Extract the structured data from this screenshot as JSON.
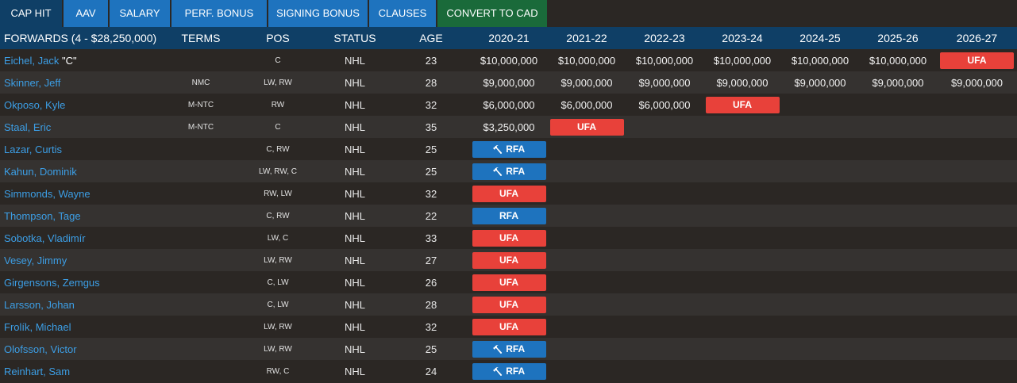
{
  "tabs": [
    {
      "label": "CAP HIT"
    },
    {
      "label": "AAV"
    },
    {
      "label": "SALARY"
    },
    {
      "label": "PERF. BONUS"
    },
    {
      "label": "SIGNING BONUS"
    },
    {
      "label": "CLAUSES"
    },
    {
      "label": "CONVERT TO CAD"
    }
  ],
  "header": {
    "group": "FORWARDS (4 - $28,250,000)",
    "terms": "TERMS",
    "pos": "POS",
    "status": "STATUS",
    "age": "AGE",
    "seasons": [
      "2020-21",
      "2021-22",
      "2022-23",
      "2023-24",
      "2024-25",
      "2025-26",
      "2026-27"
    ]
  },
  "colors": {
    "ufa": "#e8413a",
    "rfa": "#1e73be",
    "link": "#3c9ee5",
    "header_bg": "#0f3f66",
    "tab_bg": "#1e73be",
    "cad_tab_bg": "#1a6a3a"
  },
  "players": [
    {
      "name": "Eichel, Jack",
      "captain": "\"C\"",
      "terms": "",
      "pos": "C",
      "status": "NHL",
      "age": "23",
      "seasons": [
        {
          "t": "money",
          "v": "$10,000,000"
        },
        {
          "t": "money",
          "v": "$10,000,000"
        },
        {
          "t": "money",
          "v": "$10,000,000"
        },
        {
          "t": "money",
          "v": "$10,000,000"
        },
        {
          "t": "money",
          "v": "$10,000,000"
        },
        {
          "t": "money",
          "v": "$10,000,000"
        },
        {
          "t": "ufa",
          "v": "UFA"
        }
      ]
    },
    {
      "name": "Skinner, Jeff",
      "captain": "",
      "terms": "NMC",
      "pos": "LW, RW",
      "status": "NHL",
      "age": "28",
      "seasons": [
        {
          "t": "money",
          "v": "$9,000,000"
        },
        {
          "t": "money",
          "v": "$9,000,000"
        },
        {
          "t": "money",
          "v": "$9,000,000"
        },
        {
          "t": "money",
          "v": "$9,000,000"
        },
        {
          "t": "money",
          "v": "$9,000,000"
        },
        {
          "t": "money",
          "v": "$9,000,000"
        },
        {
          "t": "money",
          "v": "$9,000,000"
        }
      ]
    },
    {
      "name": "Okposo, Kyle",
      "captain": "",
      "terms": "M-NTC",
      "pos": "RW",
      "status": "NHL",
      "age": "32",
      "seasons": [
        {
          "t": "money",
          "v": "$6,000,000"
        },
        {
          "t": "money",
          "v": "$6,000,000"
        },
        {
          "t": "money",
          "v": "$6,000,000"
        },
        {
          "t": "ufa",
          "v": "UFA"
        },
        {
          "t": "empty",
          "v": ""
        },
        {
          "t": "empty",
          "v": ""
        },
        {
          "t": "empty",
          "v": ""
        }
      ]
    },
    {
      "name": "Staal, Eric",
      "captain": "",
      "terms": "M-NTC",
      "pos": "C",
      "status": "NHL",
      "age": "35",
      "seasons": [
        {
          "t": "money",
          "v": "$3,250,000"
        },
        {
          "t": "ufa",
          "v": "UFA"
        },
        {
          "t": "empty",
          "v": ""
        },
        {
          "t": "empty",
          "v": ""
        },
        {
          "t": "empty",
          "v": ""
        },
        {
          "t": "empty",
          "v": ""
        },
        {
          "t": "empty",
          "v": ""
        }
      ]
    },
    {
      "name": "Lazar, Curtis",
      "captain": "",
      "terms": "",
      "pos": "C, RW",
      "status": "NHL",
      "age": "25",
      "seasons": [
        {
          "t": "rfa",
          "v": "RFA",
          "gavel": true
        },
        {
          "t": "empty",
          "v": ""
        },
        {
          "t": "empty",
          "v": ""
        },
        {
          "t": "empty",
          "v": ""
        },
        {
          "t": "empty",
          "v": ""
        },
        {
          "t": "empty",
          "v": ""
        },
        {
          "t": "empty",
          "v": ""
        }
      ]
    },
    {
      "name": "Kahun, Dominik",
      "captain": "",
      "terms": "",
      "pos": "LW, RW, C",
      "status": "NHL",
      "age": "25",
      "seasons": [
        {
          "t": "rfa",
          "v": "RFA",
          "gavel": true
        },
        {
          "t": "empty",
          "v": ""
        },
        {
          "t": "empty",
          "v": ""
        },
        {
          "t": "empty",
          "v": ""
        },
        {
          "t": "empty",
          "v": ""
        },
        {
          "t": "empty",
          "v": ""
        },
        {
          "t": "empty",
          "v": ""
        }
      ]
    },
    {
      "name": "Simmonds, Wayne",
      "captain": "",
      "terms": "",
      "pos": "RW, LW",
      "status": "NHL",
      "age": "32",
      "seasons": [
        {
          "t": "ufa",
          "v": "UFA"
        },
        {
          "t": "empty",
          "v": ""
        },
        {
          "t": "empty",
          "v": ""
        },
        {
          "t": "empty",
          "v": ""
        },
        {
          "t": "empty",
          "v": ""
        },
        {
          "t": "empty",
          "v": ""
        },
        {
          "t": "empty",
          "v": ""
        }
      ]
    },
    {
      "name": "Thompson, Tage",
      "captain": "",
      "terms": "",
      "pos": "C, RW",
      "status": "NHL",
      "age": "22",
      "seasons": [
        {
          "t": "rfa",
          "v": "RFA",
          "gavel": false
        },
        {
          "t": "empty",
          "v": ""
        },
        {
          "t": "empty",
          "v": ""
        },
        {
          "t": "empty",
          "v": ""
        },
        {
          "t": "empty",
          "v": ""
        },
        {
          "t": "empty",
          "v": ""
        },
        {
          "t": "empty",
          "v": ""
        }
      ]
    },
    {
      "name": "Sobotka, Vladimír",
      "captain": "",
      "terms": "",
      "pos": "LW, C",
      "status": "NHL",
      "age": "33",
      "seasons": [
        {
          "t": "ufa",
          "v": "UFA"
        },
        {
          "t": "empty",
          "v": ""
        },
        {
          "t": "empty",
          "v": ""
        },
        {
          "t": "empty",
          "v": ""
        },
        {
          "t": "empty",
          "v": ""
        },
        {
          "t": "empty",
          "v": ""
        },
        {
          "t": "empty",
          "v": ""
        }
      ]
    },
    {
      "name": "Vesey, Jimmy",
      "captain": "",
      "terms": "",
      "pos": "LW, RW",
      "status": "NHL",
      "age": "27",
      "seasons": [
        {
          "t": "ufa",
          "v": "UFA"
        },
        {
          "t": "empty",
          "v": ""
        },
        {
          "t": "empty",
          "v": ""
        },
        {
          "t": "empty",
          "v": ""
        },
        {
          "t": "empty",
          "v": ""
        },
        {
          "t": "empty",
          "v": ""
        },
        {
          "t": "empty",
          "v": ""
        }
      ]
    },
    {
      "name": "Girgensons, Zemgus",
      "captain": "",
      "terms": "",
      "pos": "C, LW",
      "status": "NHL",
      "age": "26",
      "seasons": [
        {
          "t": "ufa",
          "v": "UFA"
        },
        {
          "t": "empty",
          "v": ""
        },
        {
          "t": "empty",
          "v": ""
        },
        {
          "t": "empty",
          "v": ""
        },
        {
          "t": "empty",
          "v": ""
        },
        {
          "t": "empty",
          "v": ""
        },
        {
          "t": "empty",
          "v": ""
        }
      ]
    },
    {
      "name": "Larsson, Johan",
      "captain": "",
      "terms": "",
      "pos": "C, LW",
      "status": "NHL",
      "age": "28",
      "seasons": [
        {
          "t": "ufa",
          "v": "UFA"
        },
        {
          "t": "empty",
          "v": ""
        },
        {
          "t": "empty",
          "v": ""
        },
        {
          "t": "empty",
          "v": ""
        },
        {
          "t": "empty",
          "v": ""
        },
        {
          "t": "empty",
          "v": ""
        },
        {
          "t": "empty",
          "v": ""
        }
      ]
    },
    {
      "name": "Frolík, Michael",
      "captain": "",
      "terms": "",
      "pos": "LW, RW",
      "status": "NHL",
      "age": "32",
      "seasons": [
        {
          "t": "ufa",
          "v": "UFA"
        },
        {
          "t": "empty",
          "v": ""
        },
        {
          "t": "empty",
          "v": ""
        },
        {
          "t": "empty",
          "v": ""
        },
        {
          "t": "empty",
          "v": ""
        },
        {
          "t": "empty",
          "v": ""
        },
        {
          "t": "empty",
          "v": ""
        }
      ]
    },
    {
      "name": "Olofsson, Victor",
      "captain": "",
      "terms": "",
      "pos": "LW, RW",
      "status": "NHL",
      "age": "25",
      "seasons": [
        {
          "t": "rfa",
          "v": "RFA",
          "gavel": true
        },
        {
          "t": "empty",
          "v": ""
        },
        {
          "t": "empty",
          "v": ""
        },
        {
          "t": "empty",
          "v": ""
        },
        {
          "t": "empty",
          "v": ""
        },
        {
          "t": "empty",
          "v": ""
        },
        {
          "t": "empty",
          "v": ""
        }
      ]
    },
    {
      "name": "Reinhart, Sam",
      "captain": "",
      "terms": "",
      "pos": "RW, C",
      "status": "NHL",
      "age": "24",
      "seasons": [
        {
          "t": "rfa",
          "v": "RFA",
          "gavel": true
        },
        {
          "t": "empty",
          "v": ""
        },
        {
          "t": "empty",
          "v": ""
        },
        {
          "t": "empty",
          "v": ""
        },
        {
          "t": "empty",
          "v": ""
        },
        {
          "t": "empty",
          "v": ""
        },
        {
          "t": "empty",
          "v": ""
        }
      ]
    }
  ]
}
